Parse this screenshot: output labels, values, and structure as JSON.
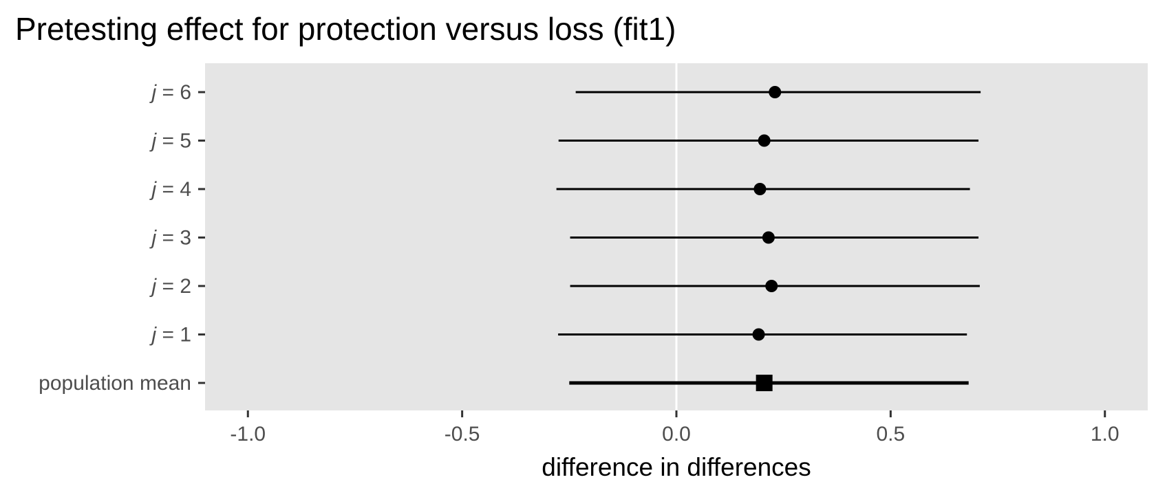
{
  "chart_data": {
    "type": "forest",
    "title": "Pretesting effect for protection versus loss (fit1)",
    "xlabel": "difference in differences",
    "ylabel": "",
    "xlim": [
      -1.1,
      1.1
    ],
    "x_ticks": [
      -1.0,
      -0.5,
      0.0,
      0.5,
      1.0
    ],
    "x_tick_labels": [
      "-1.0",
      "-0.5",
      "0.0",
      "0.5",
      "1.0"
    ],
    "reference_line_x": 0.0,
    "grid": false,
    "rows": [
      {
        "label_prefix": "j",
        "label_suffix": " = 6",
        "estimate": 0.23,
        "lower": -0.235,
        "upper": 0.71,
        "marker": "circle"
      },
      {
        "label_prefix": "j",
        "label_suffix": " = 5",
        "estimate": 0.205,
        "lower": -0.275,
        "upper": 0.705,
        "marker": "circle"
      },
      {
        "label_prefix": "j",
        "label_suffix": " = 4",
        "estimate": 0.195,
        "lower": -0.28,
        "upper": 0.685,
        "marker": "circle"
      },
      {
        "label_prefix": "j",
        "label_suffix": " = 3",
        "estimate": 0.215,
        "lower": -0.248,
        "upper": 0.705,
        "marker": "circle"
      },
      {
        "label_prefix": "j",
        "label_suffix": " = 2",
        "estimate": 0.222,
        "lower": -0.248,
        "upper": 0.708,
        "marker": "circle"
      },
      {
        "label_prefix": "j",
        "label_suffix": " = 1",
        "estimate": 0.192,
        "lower": -0.276,
        "upper": 0.678,
        "marker": "circle"
      },
      {
        "label_prefix": "",
        "label_suffix": "population mean",
        "estimate": 0.205,
        "lower": -0.25,
        "upper": 0.682,
        "marker": "square"
      }
    ]
  }
}
